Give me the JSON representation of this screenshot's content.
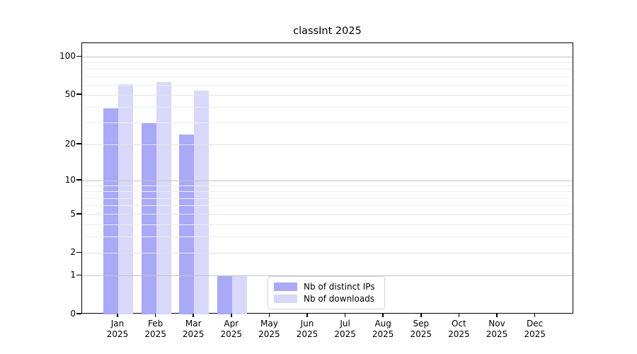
{
  "chart_data": {
    "type": "bar",
    "title": "classInt 2025",
    "categories": [
      "Jan",
      "Feb",
      "Mar",
      "Apr",
      "May",
      "Jun",
      "Jul",
      "Aug",
      "Sep",
      "Oct",
      "Nov",
      "Dec"
    ],
    "category_year": "2025",
    "series": [
      {
        "name": "Nb of distinct IPs",
        "color": "#a9a9f7",
        "values": [
          39,
          30,
          24,
          1,
          0,
          0,
          0,
          0,
          0,
          0,
          0,
          0
        ]
      },
      {
        "name": "Nb of downloads",
        "color": "#d8d8fa",
        "values": [
          61,
          63,
          54,
          1,
          0,
          0,
          0,
          0,
          0,
          0,
          0,
          0
        ]
      }
    ],
    "yscale": "log1p",
    "ylim": [
      0,
      128
    ],
    "y_ticks": [
      0,
      1,
      2,
      5,
      10,
      20,
      50,
      100
    ],
    "gridlines": {
      "major": [
        1,
        10,
        100
      ],
      "mid": [
        2,
        5,
        20,
        50
      ],
      "minor": [
        3,
        4,
        6,
        7,
        8,
        9,
        30,
        40,
        60,
        70,
        80,
        90
      ]
    },
    "grid": true,
    "legend_position": "lower center",
    "xlabel": "",
    "ylabel": ""
  }
}
